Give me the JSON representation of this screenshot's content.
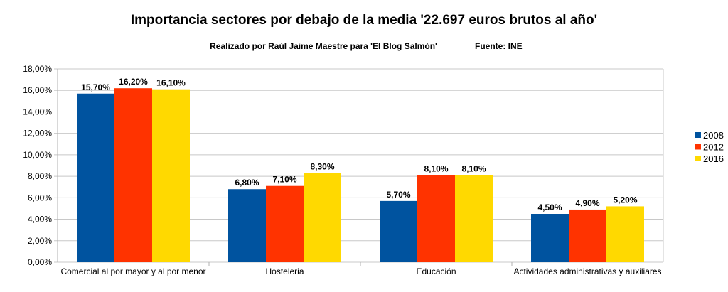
{
  "chart_data": {
    "type": "bar",
    "title": "Importancia sectores por debajo de la media '22.697 euros brutos al año'",
    "subtitle": "Realizado por Raúl Jaime Maestre para 'El Blog Salmón'",
    "source": "Fuente: INE",
    "categories": [
      "Comercial al por mayor y al por menor",
      "Hosteleria",
      "Educación",
      "Actividades administrativas y auxiliares"
    ],
    "series": [
      {
        "name": "2008",
        "color": "#00539f",
        "values": [
          15.7,
          6.8,
          5.7,
          4.5
        ],
        "labels": [
          "15,70%",
          "6,80%",
          "5,70%",
          "4,50%"
        ]
      },
      {
        "name": "2012",
        "color": "#ff3300",
        "values": [
          16.2,
          7.1,
          8.1,
          4.9
        ],
        "labels": [
          "16,20%",
          "7,10%",
          "8,10%",
          "4,90%"
        ]
      },
      {
        "name": "2016",
        "color": "#ffd900",
        "values": [
          16.1,
          8.3,
          8.1,
          5.2
        ],
        "labels": [
          "16,10%",
          "8,30%",
          "8,10%",
          "5,20%"
        ]
      }
    ],
    "ylim": [
      0,
      18
    ],
    "yticks": [
      "0,00%",
      "2,00%",
      "4,00%",
      "6,00%",
      "8,00%",
      "10,00%",
      "12,00%",
      "14,00%",
      "16,00%",
      "18,00%"
    ],
    "grid": true,
    "legend": "right"
  }
}
